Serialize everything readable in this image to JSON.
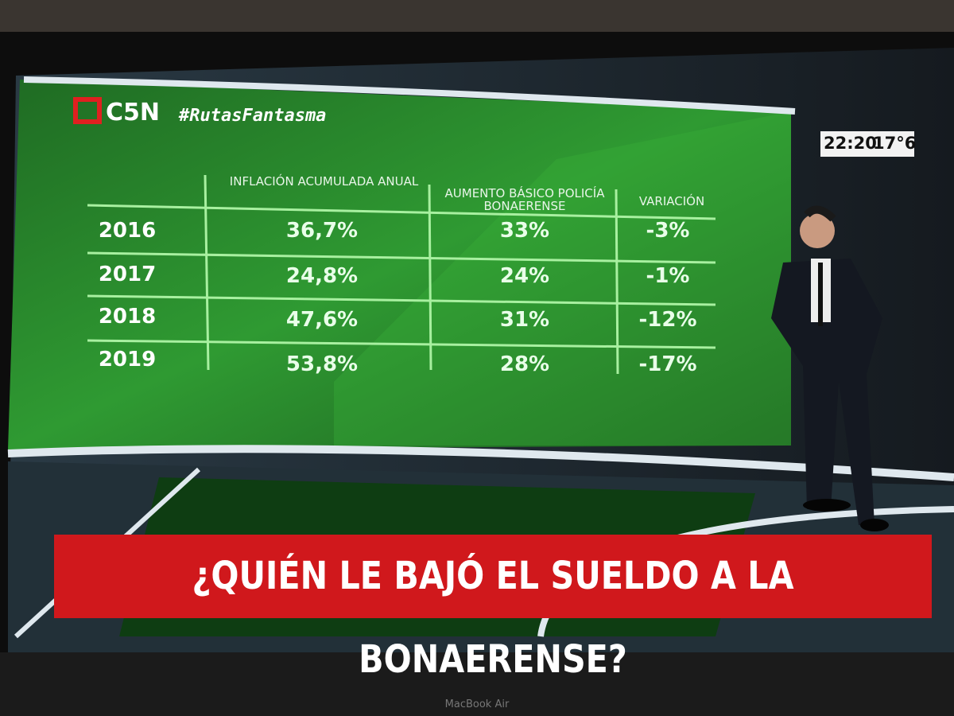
{
  "broadcast": {
    "logo": "C5N",
    "hashtag": "#RutasFantasma",
    "clock": "22:20",
    "temperature": "17°6"
  },
  "table": {
    "header": [
      "INFLACIÓN ACUMULADA ANUAL",
      "AUMENTO BÁSICO POLICÍA BONAERENSE",
      "VARIACIÓN"
    ],
    "rows": [
      [
        "2016",
        "36,7%",
        "33%",
        "-3%"
      ],
      [
        "2017",
        "24,8%",
        "24%",
        "-1%"
      ],
      [
        "2018",
        "47,6%",
        "31%",
        "-12%"
      ],
      [
        "2019",
        "53,8%",
        "28%",
        "-17%"
      ]
    ]
  },
  "headline": "¿QUIÉN LE BAJÓ EL SUELDO A LA BONAERENSE?",
  "device": "MacBook Air"
}
